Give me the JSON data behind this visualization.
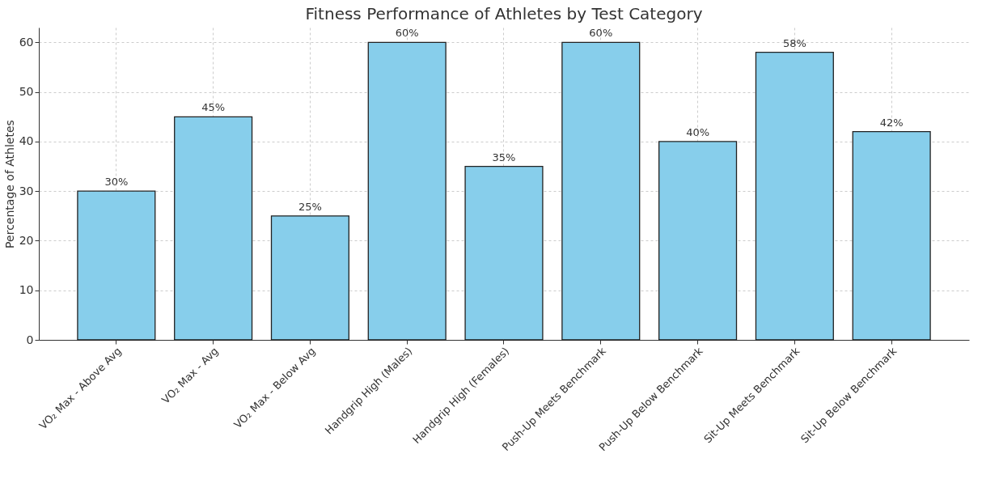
{
  "chart_data": {
    "type": "bar",
    "title": "Fitness Performance of Athletes by Test Category",
    "ylabel": "Percentage of Athletes",
    "categories": [
      "VO₂ Max - Above Avg",
      "VO₂ Max - Avg",
      "VO₂ Max - Below Avg",
      "Handgrip High (Males)",
      "Handgrip High (Females)",
      "Push-Up Meets Benchmark",
      "Push-Up Below Benchmark",
      "Sit-Up Meets Benchmark",
      "Sit-Up Below Benchmark"
    ],
    "values": [
      30,
      45,
      25,
      60,
      35,
      60,
      40,
      58,
      42
    ],
    "value_labels": [
      "30%",
      "45%",
      "25%",
      "60%",
      "35%",
      "60%",
      "40%",
      "58%",
      "42%"
    ],
    "color": "#87ceeb",
    "ylim": [
      0,
      63
    ],
    "yticks": [
      0,
      10,
      20,
      30,
      40,
      50,
      60
    ],
    "grid": true
  }
}
